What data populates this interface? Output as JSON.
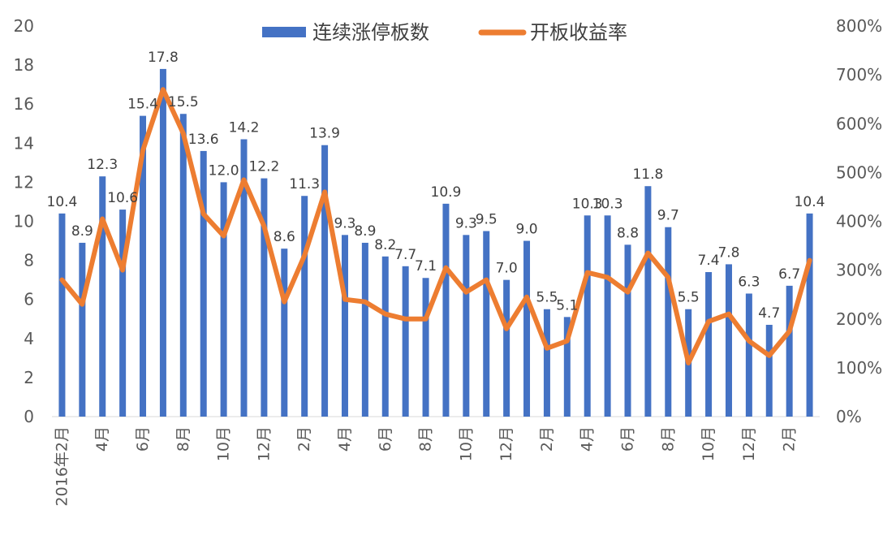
{
  "chart_data": {
    "type": "bar+line",
    "title": "",
    "legend": {
      "position": "top",
      "entries": [
        {
          "name": "连续涨停板数",
          "color": "#4472C4",
          "kind": "bar"
        },
        {
          "name": "开板收益率",
          "color": "#ED7D31",
          "kind": "line"
        }
      ]
    },
    "categories": [
      "2016年2月",
      "3月",
      "4月",
      "5月",
      "6月",
      "7月",
      "8月",
      "9月",
      "10月",
      "11月",
      "12月",
      "1月",
      "2月",
      "3月",
      "4月",
      "5月",
      "6月",
      "7月",
      "8月",
      "9月",
      "10月",
      "11月",
      "12月",
      "1月",
      "2月",
      "3月",
      "4月",
      "5月",
      "6月",
      "7月",
      "8月",
      "9月",
      "10月",
      "11月",
      "12月",
      "1月",
      "2月",
      "3月"
    ],
    "x_tick_labels": [
      "2016年2月",
      "",
      "4月",
      "",
      "6月",
      "",
      "8月",
      "",
      "10月",
      "",
      "12月",
      "",
      "2月",
      "",
      "4月",
      "",
      "6月",
      "",
      "8月",
      "",
      "10月",
      "",
      "12月",
      "",
      "2月",
      "",
      "4月",
      "",
      "6月",
      "",
      "8月",
      "",
      "10月",
      "",
      "12月",
      "",
      "2月",
      ""
    ],
    "series": [
      {
        "name": "连续涨停板数",
        "axis": "left",
        "values": [
          10.4,
          8.9,
          12.3,
          10.6,
          15.4,
          17.8,
          15.5,
          13.6,
          12.0,
          14.2,
          12.2,
          8.6,
          11.3,
          13.9,
          9.3,
          8.9,
          8.2,
          7.7,
          7.1,
          10.9,
          9.3,
          9.5,
          7.0,
          9.0,
          5.5,
          5.1,
          10.3,
          10.3,
          8.8,
          11.8,
          9.7,
          5.5,
          7.4,
          7.8,
          6.3,
          4.7,
          6.7,
          10.4
        ],
        "labels": [
          "10.4",
          "8.9",
          "12.3",
          "10.6",
          "15.4",
          "17.8",
          "15.5",
          "13.6",
          "12.0",
          "14.2",
          "12.2",
          "8.6",
          "11.3",
          "13.9",
          "9.3",
          "8.9",
          "8.2",
          "7.7",
          "7.1",
          "10.9",
          "9.3",
          "9.5",
          "7.0",
          "9.0",
          "5.5",
          "5.1",
          "10.3",
          "10.3",
          "8.8",
          "11.8",
          "9.7",
          "5.5",
          "7.4",
          "7.8",
          "6.3",
          "4.7",
          "6.7",
          "10.4"
        ],
        "label_visible": [
          true,
          true,
          true,
          true,
          true,
          true,
          true,
          true,
          true,
          true,
          true,
          true,
          true,
          true,
          true,
          true,
          true,
          true,
          true,
          true,
          true,
          true,
          true,
          true,
          true,
          true,
          true,
          true,
          true,
          true,
          true,
          true,
          true,
          true,
          true,
          true,
          true,
          true
        ]
      },
      {
        "name": "开板收益率",
        "axis": "right",
        "values": [
          280,
          230,
          405,
          300,
          545,
          670,
          580,
          415,
          370,
          485,
          390,
          235,
          330,
          460,
          240,
          235,
          210,
          200,
          200,
          305,
          255,
          280,
          180,
          245,
          140,
          155,
          295,
          285,
          255,
          335,
          285,
          110,
          195,
          210,
          155,
          125,
          175,
          320
        ]
      }
    ],
    "y_left": {
      "min": 0,
      "max": 20,
      "ticks": [
        0,
        2,
        4,
        6,
        8,
        10,
        12,
        14,
        16,
        18,
        20
      ],
      "tick_labels": [
        "0",
        "2",
        "4",
        "6",
        "8",
        "10",
        "12",
        "14",
        "16",
        "18",
        "20"
      ]
    },
    "y_right": {
      "min": 0,
      "max": 800,
      "ticks": [
        0,
        100,
        200,
        300,
        400,
        500,
        600,
        700,
        800
      ],
      "tick_labels": [
        "0%",
        "100%",
        "200%",
        "300%",
        "400%",
        "500%",
        "600%",
        "700%",
        "800%"
      ]
    },
    "grid": false
  }
}
